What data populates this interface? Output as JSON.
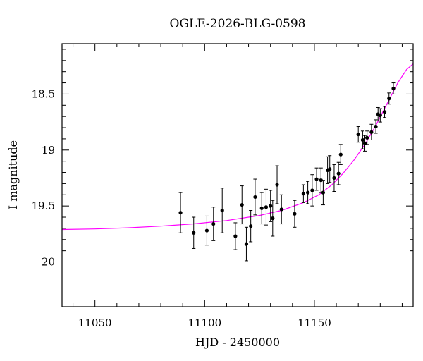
{
  "chart_data": {
    "type": "scatter",
    "title": "OGLE-2026-BLG-0598",
    "xlabel": "HJD - 2450000",
    "ylabel": "I magnitude",
    "xlim": [
      11035,
      11195
    ],
    "ylim": [
      20.4,
      18.05
    ],
    "y_inverted": true,
    "xticks_major": [
      11050,
      11100,
      11150
    ],
    "yticks_major": [
      18.5,
      19,
      19.5,
      20
    ],
    "x_tick_labels": [
      "11050",
      "11100",
      "11150"
    ],
    "y_tick_labels": [
      "18.5",
      "19",
      "19.5",
      "20"
    ],
    "grid": false,
    "legend": "none",
    "colors": {
      "model": "#ff00ff",
      "points": "#000000"
    },
    "model_curve": {
      "x": [
        11035,
        11050,
        11065,
        11080,
        11095,
        11110,
        11125,
        11135,
        11145,
        11152,
        11158,
        11163,
        11168,
        11173,
        11178,
        11183,
        11188,
        11192,
        11195
      ],
      "y": [
        19.71,
        19.705,
        19.695,
        19.68,
        19.66,
        19.63,
        19.585,
        19.54,
        19.47,
        19.4,
        19.31,
        19.21,
        19.09,
        18.95,
        18.78,
        18.59,
        18.4,
        18.28,
        18.23
      ]
    },
    "series": [
      {
        "x": [
          11089,
          11095,
          11101,
          11104,
          11108,
          11114,
          11117,
          11119,
          11121,
          11123,
          11126,
          11128,
          11130,
          11131,
          11133,
          11135,
          11141,
          11145,
          11147,
          11149,
          11151,
          11153,
          11154,
          11156,
          11157,
          11159,
          11161,
          11162,
          11170,
          11172,
          11173,
          11174,
          11176,
          11178,
          11179,
          11180,
          11182,
          11184,
          11186
        ],
        "y": [
          19.56,
          19.74,
          19.72,
          19.66,
          19.54,
          19.77,
          19.49,
          19.84,
          19.68,
          19.42,
          19.52,
          19.51,
          19.5,
          19.61,
          19.31,
          19.53,
          19.57,
          19.39,
          19.38,
          19.36,
          19.26,
          19.27,
          19.38,
          19.18,
          19.17,
          19.25,
          19.21,
          19.04,
          18.86,
          18.91,
          18.94,
          18.89,
          18.84,
          18.79,
          18.68,
          18.69,
          18.66,
          18.54,
          18.45
        ],
        "err": [
          0.18,
          0.14,
          0.13,
          0.15,
          0.2,
          0.12,
          0.17,
          0.15,
          0.14,
          0.16,
          0.14,
          0.16,
          0.14,
          0.16,
          0.17,
          0.13,
          0.12,
          0.08,
          0.1,
          0.14,
          0.1,
          0.11,
          0.11,
          0.12,
          0.12,
          0.12,
          0.1,
          0.09,
          0.07,
          0.08,
          0.07,
          0.06,
          0.07,
          0.06,
          0.06,
          0.06,
          0.05,
          0.05,
          0.05
        ]
      }
    ]
  }
}
